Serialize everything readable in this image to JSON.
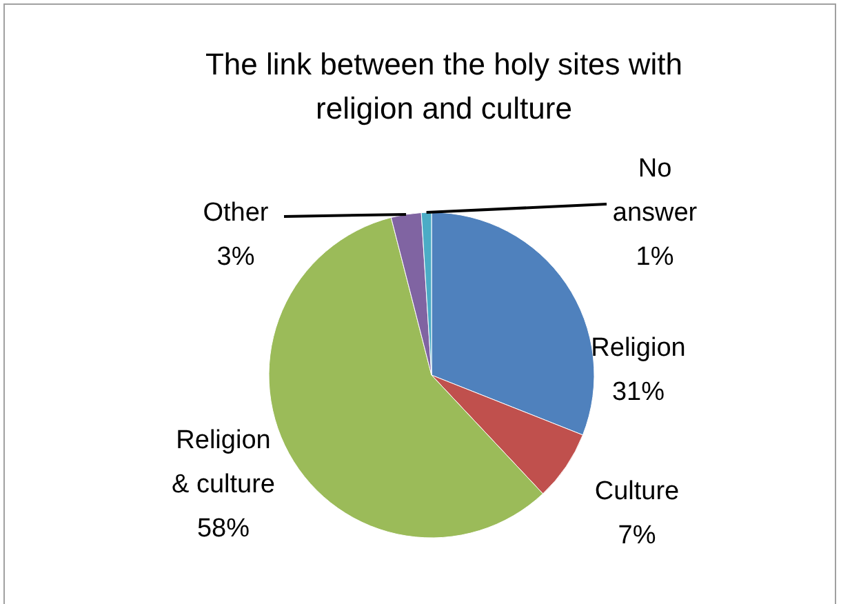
{
  "chart_data": {
    "type": "pie",
    "title": "The link between the holy sites with religion and culture",
    "categories": [
      "Religion",
      "Culture",
      "Religion & culture",
      "Other",
      "No answer"
    ],
    "values": [
      31,
      7,
      58,
      3,
      1
    ],
    "colors": [
      "#4f81bd",
      "#c0504d",
      "#9bbb59",
      "#8064a2",
      "#4bacc6"
    ],
    "value_labels": [
      "31%",
      "7%",
      "58%",
      "3%",
      "1%"
    ]
  }
}
